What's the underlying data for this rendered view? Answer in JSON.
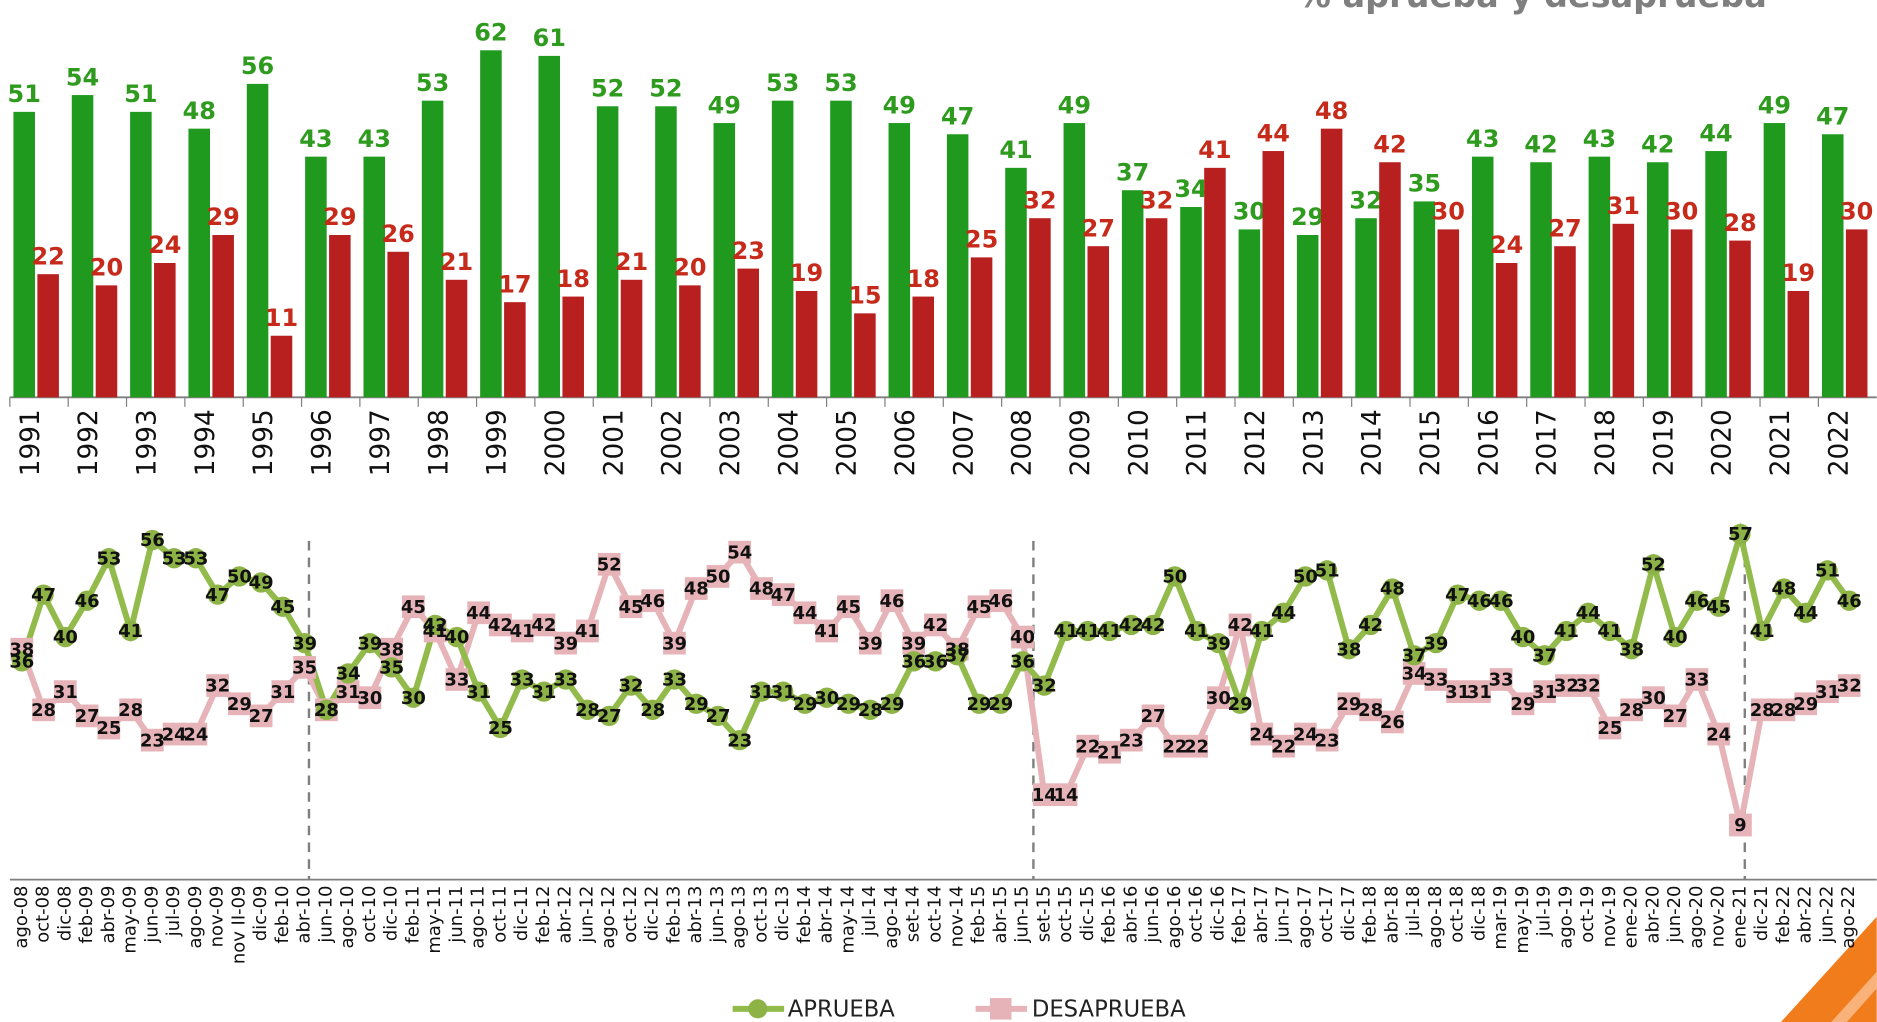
{
  "chart_data": [
    {
      "type": "bar",
      "title": "%   aprueba   y   desaprueba",
      "categories": [
        "1991",
        "1992",
        "1993",
        "1994",
        "1995",
        "1996",
        "1997",
        "1998",
        "1999",
        "2000",
        "2001",
        "2002",
        "2003",
        "2004",
        "2005",
        "2006",
        "2007",
        "2008",
        "2009",
        "2010",
        "2011",
        "2012",
        "2013",
        "2014",
        "2015",
        "2016",
        "2017",
        "2018",
        "2019",
        "2020",
        "2021",
        "2022"
      ],
      "series": [
        {
          "color": "#1f9a1f",
          "label_color": "#2e9b1e",
          "values": [
            51,
            54,
            51,
            48,
            56,
            43,
            43,
            53,
            62,
            61,
            52,
            52,
            49,
            53,
            53,
            49,
            47,
            41,
            49,
            37,
            34,
            30,
            29,
            32,
            35,
            43,
            42,
            43,
            42,
            44,
            49,
            47
          ]
        },
        {
          "color": "#b81f1f",
          "label_color": "#c62a1a",
          "values": [
            22,
            20,
            24,
            29,
            11,
            29,
            26,
            21,
            17,
            18,
            21,
            20,
            23,
            19,
            15,
            18,
            25,
            32,
            27,
            32,
            41,
            44,
            48,
            42,
            30,
            24,
            27,
            31,
            30,
            28,
            19,
            30
          ]
        }
      ],
      "ylim": [
        0,
        65
      ]
    },
    {
      "type": "line",
      "categories": [
        "ago-08",
        "oct-08",
        "dic-08",
        "feb-09",
        "abr-09",
        "may-09",
        "jun-09",
        "jul-09",
        "ago-09",
        "nov-09",
        "nov II-09",
        "dic-09",
        "feb-10",
        "abr-10",
        "jun-10",
        "ago-10",
        "oct-10",
        "dic-10",
        "feb-11",
        "may-11",
        "jun-11",
        "ago-11",
        "oct-11",
        "dic-11",
        "feb-12",
        "abr-12",
        "jun-12",
        "ago-12",
        "oct-12",
        "dic-12",
        "feb-13",
        "abr-13",
        "jun-13",
        "ago-13",
        "oct-13",
        "dic-13",
        "feb-14",
        "abr-14",
        "may-14",
        "jul-14",
        "ago-14",
        "set-14",
        "oct-14",
        "nov-14",
        "feb-15",
        "abr-15",
        "jun-15",
        "set-15",
        "oct-15",
        "dic-15",
        "feb-16",
        "abr-16",
        "jun-16",
        "ago-16",
        "oct-16",
        "dic-16",
        "feb-17",
        "abr-17",
        "jun-17",
        "ago-17",
        "oct-17",
        "dic-17",
        "feb-18",
        "abr-18",
        "jul-18",
        "ago-18",
        "oct-18",
        "dic-18",
        "mar-19",
        "may-19",
        "jul-19",
        "ago-19",
        "oct-19",
        "nov-19",
        "ene-20",
        "abr-20",
        "jun-20",
        "ago-20",
        "nov-20",
        "ene-21",
        "dic-21",
        "feb-22",
        "abr-22",
        "jun-22",
        "ago-22"
      ],
      "series": [
        {
          "name": "APRUEBA",
          "color": "#92bb4c",
          "values": [
            36,
            47,
            40,
            46,
            53,
            41,
            56,
            53,
            53,
            47,
            50,
            49,
            45,
            39,
            28,
            34,
            39,
            35,
            30,
            42,
            40,
            31,
            25,
            33,
            31,
            33,
            28,
            27,
            32,
            28,
            33,
            29,
            27,
            23,
            31,
            31,
            29,
            30,
            29,
            28,
            29,
            36,
            36,
            37,
            29,
            29,
            36,
            32,
            41,
            41,
            41,
            42,
            42,
            50,
            41,
            39,
            29,
            41,
            44,
            50,
            51,
            38,
            42,
            48,
            37,
            39,
            47,
            46,
            46,
            40,
            37,
            41,
            44,
            41,
            38,
            52,
            40,
            46,
            45,
            57,
            41,
            48,
            44,
            51,
            46
          ]
        },
        {
          "name": "DESAPRUEBA",
          "color": "#e6b4b8",
          "values": [
            38,
            28,
            31,
            27,
            25,
            28,
            23,
            24,
            24,
            32,
            29,
            27,
            31,
            35,
            28,
            31,
            30,
            38,
            45,
            41,
            33,
            44,
            42,
            41,
            42,
            39,
            41,
            52,
            45,
            46,
            39,
            48,
            50,
            54,
            48,
            47,
            44,
            41,
            45,
            39,
            46,
            39,
            42,
            38,
            45,
            46,
            40,
            14,
            14,
            22,
            21,
            23,
            27,
            22,
            22,
            30,
            42,
            24,
            22,
            24,
            23,
            29,
            28,
            26,
            34,
            33,
            31,
            31,
            33,
            29,
            31,
            32,
            32,
            25,
            28,
            30,
            27,
            33,
            24,
            9,
            28,
            28,
            29,
            31,
            32
          ]
        }
      ],
      "ylim": [
        0,
        60
      ]
    }
  ]
}
